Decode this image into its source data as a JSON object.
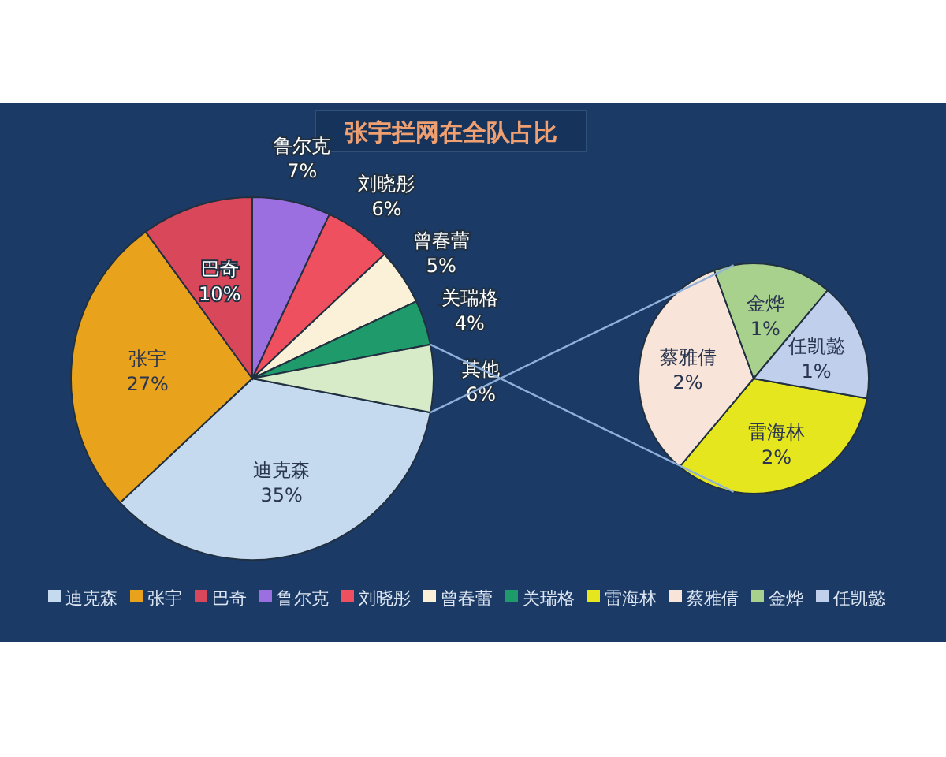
{
  "chart_data": [
    {
      "type": "pie",
      "title": "张宇拦网在全队占比",
      "legend": "bottom",
      "categories": [
        "迪克森",
        "张宇",
        "巴奇",
        "鲁尔克",
        "刘晓彤",
        "曾春蕾",
        "关瑞格",
        "其他"
      ],
      "values": [
        35,
        27,
        10,
        7,
        6,
        5,
        4,
        6
      ],
      "value_labels": [
        "35%",
        "27%",
        "10%",
        "7%",
        "6%",
        "5%",
        "4%",
        "6%"
      ],
      "colors": [
        "#c5d9ef",
        "#e8a21c",
        "#d9485a",
        "#9b6fe0",
        "#ef5060",
        "#fbf0d8",
        "#1f9a6a",
        "#d8ebc8"
      ]
    },
    {
      "type": "pie",
      "legend": "bottom",
      "categories": [
        "雷海林",
        "蔡雅倩",
        "金烨",
        "任凯懿"
      ],
      "values": [
        2,
        2,
        1,
        1
      ],
      "value_labels": [
        "2%",
        "2%",
        "1%",
        "1%"
      ],
      "colors": [
        "#e6e61e",
        "#f8e4d8",
        "#a9d18e",
        "#c0d0ec"
      ]
    }
  ]
}
